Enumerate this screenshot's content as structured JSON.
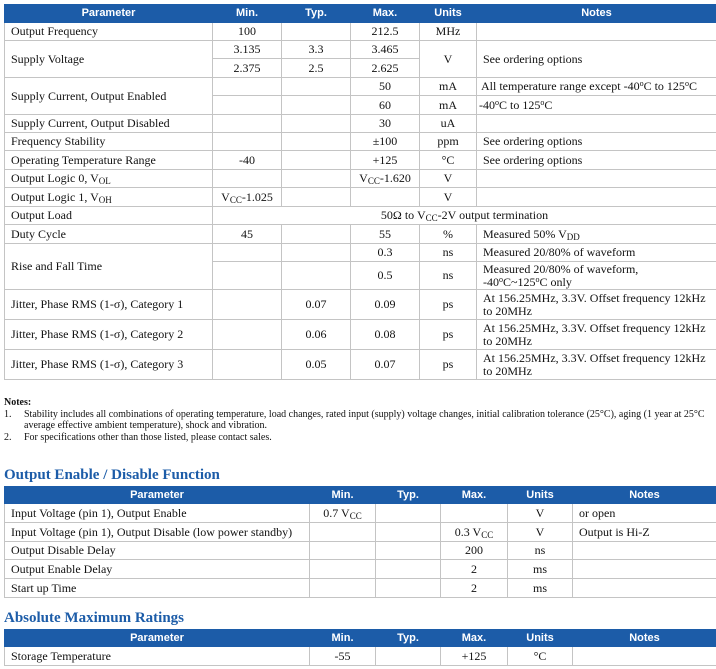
{
  "headers": [
    "Parameter",
    "Min.",
    "Typ.",
    "Max.",
    "Units",
    "Notes"
  ],
  "main": {
    "r1": [
      "Output Frequency",
      "100",
      "",
      "212.5",
      "MHz",
      ""
    ],
    "r2": {
      "param": "Supply Voltage",
      "a": [
        "3.135",
        "3.3",
        "3.465"
      ],
      "b": [
        "2.375",
        "2.5",
        "2.625"
      ],
      "unit": "V",
      "note": "See ordering options"
    },
    "r3": {
      "param": "Supply Current, Output Enabled",
      "a_max": "50",
      "a_unit": "mA",
      "a_note": [
        "All temperature range except -40",
        "o",
        "C to 125",
        "o",
        "C"
      ],
      "b_max": "60",
      "b_unit": "mA",
      "b_note": [
        "-40",
        "o",
        "C to 125",
        "o",
        "C"
      ]
    },
    "r4": [
      "Supply Current, Output Disabled",
      "",
      "",
      "30",
      "uA",
      ""
    ],
    "r5": [
      "Frequency Stability",
      "",
      "",
      "±100",
      "ppm",
      "See ordering options"
    ],
    "r6": [
      "Operating Temperature Range",
      "-40",
      "",
      "+125",
      "°C",
      "See ordering options"
    ],
    "r7": {
      "param": "Output Logic 0, V",
      "param_sub": "OL",
      "max": "V",
      "max_sub": "CC",
      "max_rest": "-1.620",
      "unit": "V"
    },
    "r8": {
      "param": "Output Logic 1, V",
      "param_sub": "OH",
      "min": "V",
      "min_sub": "CC",
      "min_rest": "-1.025",
      "unit": "V"
    },
    "r9": {
      "param": "Output Load",
      "note": "50Ω to V",
      "note_sub": "CC",
      "note_rest": "-2V output termination"
    },
    "r10": {
      "param": "Duty Cycle",
      "min": "45",
      "max": "55",
      "unit": "%",
      "note": "Measured 50% V",
      "note_sub": "DD"
    },
    "r11": {
      "param": "Rise and Fall Time",
      "a_max": "0.3",
      "a_unit": "ns",
      "a_note": "Measured 20/80% of waveform",
      "b_max": "0.5",
      "b_unit": "ns",
      "b_note1": "Measured 20/80% of waveform,",
      "b_note2": [
        "-40",
        "o",
        "C~125",
        "o",
        "C only"
      ]
    },
    "jitter": [
      {
        "param": "Jitter, Phase RMS (1-σ), Category 1",
        "typ": "0.07",
        "max": "0.09",
        "unit": "ps",
        "note": "At 156.25MHz, 3.3V. Offset frequency 12kHz to 20MHz"
      },
      {
        "param": "Jitter, Phase RMS (1-σ), Category 2",
        "typ": "0.06",
        "max": "0.08",
        "unit": "ps",
        "note": "At 156.25MHz, 3.3V. Offset frequency 12kHz to 20MHz"
      },
      {
        "param": "Jitter, Phase RMS (1-σ), Category 3",
        "typ": "0.05",
        "max": "0.07",
        "unit": "ps",
        "note": "At 156.25MHz, 3.3V. Offset frequency 12kHz to 20MHz"
      }
    ]
  },
  "notes": {
    "title": "Notes:",
    "items": [
      {
        "num": "1.",
        "text": "Stability includes all combinations of operating temperature, load changes, rated input (supply) voltage changes, initial calibration tolerance (25°C), aging (1 year at 25°C average effective ambient temperature), shock and vibration."
      },
      {
        "num": "2.",
        "text": "For specifications other than those listed, please contact sales."
      }
    ]
  },
  "oe": {
    "title": "Output Enable / Disable Function",
    "rows": [
      {
        "param": "Input Voltage (pin 1), Output Enable",
        "min": "0.7 V",
        "min_sub": "CC",
        "max": "",
        "max_sub": "",
        "unit": "V",
        "note": "or open"
      },
      {
        "param": "Input Voltage (pin 1), Output Disable (low power standby)",
        "min": "",
        "min_sub": "",
        "max": "0.3 V",
        "max_sub": "CC",
        "unit": "V",
        "note": "Output is Hi-Z"
      },
      {
        "param": "Output Disable Delay",
        "min": "",
        "min_sub": "",
        "max": "200",
        "max_sub": "",
        "unit": "ns",
        "note": ""
      },
      {
        "param": "Output Enable Delay",
        "min": "",
        "min_sub": "",
        "max": "2",
        "max_sub": "",
        "unit": "ms",
        "note": ""
      },
      {
        "param": "Start up Time",
        "min": "",
        "min_sub": "",
        "max": "2",
        "max_sub": "",
        "unit": "ms",
        "note": ""
      }
    ]
  },
  "amr": {
    "title": "Absolute Maximum Ratings",
    "rows": [
      {
        "param": "Storage Temperature",
        "min": "-55",
        "typ": "",
        "max": "+125",
        "unit": "°C",
        "note": ""
      }
    ]
  }
}
